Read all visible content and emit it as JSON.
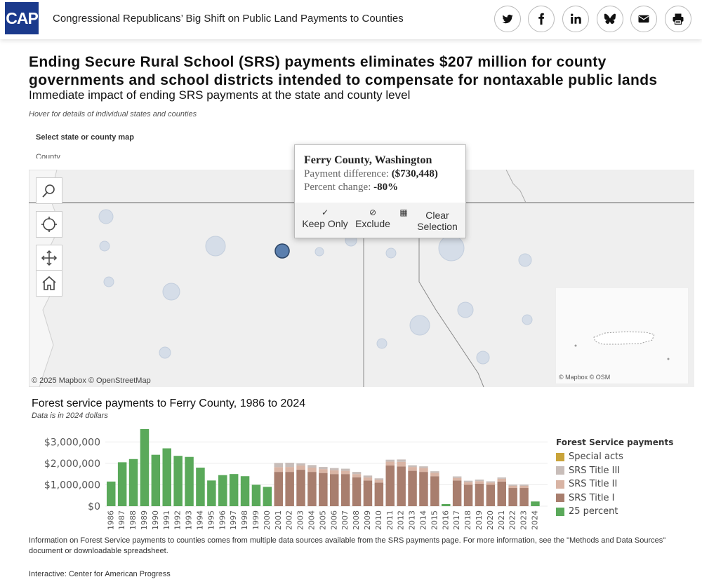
{
  "header": {
    "logo_text": "CAP",
    "title": "Congressional Republicans’ Big Shift on Public Land Payments to Counties",
    "share_icons": [
      "twitter-icon",
      "facebook-icon",
      "linkedin-icon",
      "bluesky-icon",
      "email-icon",
      "print-icon"
    ]
  },
  "headline": "Ending Secure Rural School (SRS) payments eliminates $207 million for county governments and school districts intended to compensate for nontaxable public lands",
  "subhead": "Immediate impact of ending SRS payments at the state and county level",
  "hover_note": "Hover for details of individual states and counties",
  "selector": {
    "label": "Select state or county map",
    "value": "County"
  },
  "map": {
    "attribution": "© 2025 Mapbox  © OpenStreetMap",
    "inset_attribution": "© Mapbox  © OSM"
  },
  "tooltip": {
    "title": "Ferry County, Washington",
    "diff_label": "Payment difference:",
    "diff_value": "($730,448)",
    "pct_label": "Percent change:",
    "pct_value": "-80%",
    "keep_label": "Keep Only",
    "exclude_label": "Exclude",
    "clear_label": "Clear Selection"
  },
  "chart": {
    "title": "Forest service payments to Ferry County, 1986 to 2024",
    "subtitle": "Data is in 2024 dollars"
  },
  "chart_data": {
    "type": "bar",
    "stacked": true,
    "title": "Forest service payments to Ferry County, 1986 to 2024",
    "subtitle": "Data is in 2024 dollars",
    "xlabel": "",
    "ylabel": "",
    "ylim": [
      0,
      3600000
    ],
    "ytick_values": [
      0,
      1000000,
      2000000,
      3000000
    ],
    "ytick_labels": [
      "$0",
      "$1,000,000",
      "$2,000,000",
      "$3,000,000"
    ],
    "categories": [
      "1986",
      "1987",
      "1988",
      "1989",
      "1990",
      "1991",
      "1992",
      "1993",
      "1994",
      "1995",
      "1996",
      "1997",
      "1998",
      "1999",
      "2000",
      "2001",
      "2002",
      "2003",
      "2004",
      "2005",
      "2006",
      "2007",
      "2008",
      "2009",
      "2010",
      "2011",
      "2012",
      "2013",
      "2014",
      "2015",
      "2016",
      "2017",
      "2018",
      "2019",
      "2020",
      "2021",
      "2022",
      "2023",
      "2024"
    ],
    "legend_title": "Forest Service payments",
    "series": [
      {
        "name": "25 percent",
        "color": "#5aa95a",
        "values": [
          1150000,
          2050000,
          2200000,
          3600000,
          2400000,
          2700000,
          2350000,
          2300000,
          1800000,
          1200000,
          1450000,
          1500000,
          1400000,
          1000000,
          900000,
          0,
          0,
          0,
          0,
          0,
          0,
          0,
          0,
          0,
          0,
          0,
          0,
          0,
          0,
          0,
          100000,
          0,
          0,
          0,
          0,
          0,
          0,
          0,
          220000
        ]
      },
      {
        "name": "SRS Title I",
        "color": "#a87e6e",
        "values": [
          0,
          0,
          0,
          0,
          0,
          0,
          0,
          0,
          0,
          0,
          0,
          0,
          0,
          0,
          0,
          1600000,
          1600000,
          1700000,
          1600000,
          1550000,
          1500000,
          1500000,
          1350000,
          1200000,
          1100000,
          1900000,
          1850000,
          1650000,
          1600000,
          1400000,
          0,
          1200000,
          1000000,
          1050000,
          1000000,
          1150000,
          850000,
          850000,
          0
        ]
      },
      {
        "name": "SRS Title II",
        "color": "#d9b4a4",
        "values": [
          0,
          0,
          0,
          0,
          0,
          0,
          0,
          0,
          0,
          0,
          0,
          0,
          0,
          0,
          0,
          220000,
          230000,
          200000,
          200000,
          180000,
          180000,
          150000,
          150000,
          140000,
          130000,
          180000,
          220000,
          180000,
          180000,
          160000,
          0,
          120000,
          120000,
          120000,
          100000,
          130000,
          100000,
          100000,
          0
        ]
      },
      {
        "name": "SRS Title III",
        "color": "#c8bdb9",
        "values": [
          0,
          0,
          0,
          0,
          0,
          0,
          0,
          0,
          0,
          0,
          0,
          0,
          0,
          0,
          0,
          200000,
          200000,
          100000,
          120000,
          100000,
          100000,
          100000,
          100000,
          90000,
          70000,
          90000,
          110000,
          80000,
          80000,
          70000,
          0,
          70000,
          70000,
          70000,
          60000,
          60000,
          60000,
          60000,
          0
        ]
      },
      {
        "name": "Special acts",
        "color": "#c9a43a",
        "values": [
          0,
          0,
          0,
          0,
          0,
          0,
          0,
          0,
          0,
          0,
          0,
          0,
          0,
          0,
          0,
          0,
          0,
          0,
          0,
          0,
          0,
          0,
          0,
          0,
          0,
          0,
          0,
          0,
          0,
          0,
          0,
          0,
          0,
          0,
          0,
          0,
          0,
          0,
          0
        ]
      }
    ],
    "legend_order": [
      "Special acts",
      "SRS Title III",
      "SRS Title II",
      "SRS Title I",
      "25 percent"
    ]
  },
  "footnote": "Information on Forest Service payments to counties comes from multiple data sources available from the SRS payments page. For more information, see the \"Methods and Data Sources\" document or downloadable spreadsheet.",
  "credit": "Interactive: Center for American Progress"
}
